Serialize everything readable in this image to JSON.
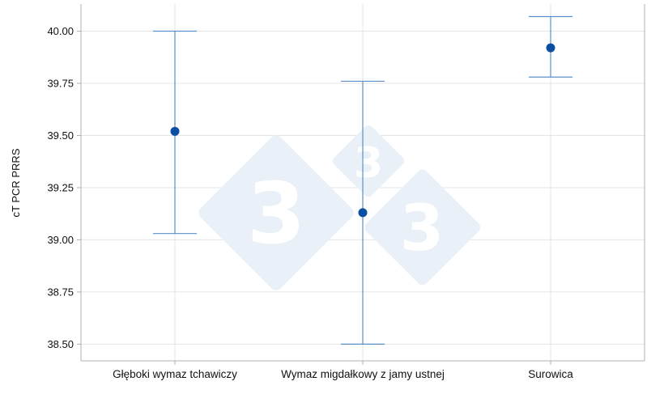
{
  "chart_data": {
    "type": "scatter",
    "title": "",
    "xlabel": "",
    "ylabel": "cT PCR PRRS",
    "categories": [
      "Głęboki wymaz tchawiczy",
      "Wymaz migdałkowy z jamy ustnej",
      "Surowica"
    ],
    "means": [
      39.52,
      39.13,
      39.92
    ],
    "ci_low": [
      39.03,
      38.5,
      39.78
    ],
    "ci_high": [
      40.0,
      39.76,
      40.07
    ],
    "ylim": [
      38.42,
      40.13
    ],
    "yticks": [
      "38.50",
      "38.75",
      "39.00",
      "39.25",
      "39.50",
      "39.75",
      "40.00"
    ],
    "grid": true,
    "colors": {
      "point": "#0b4ea2",
      "errorbar": "#5b8fc7",
      "grid": "#e4e4e4",
      "axis": "#b0b0b0",
      "watermark": "#eaf0f7"
    },
    "watermark_digits": [
      "3",
      "3",
      "3"
    ]
  }
}
